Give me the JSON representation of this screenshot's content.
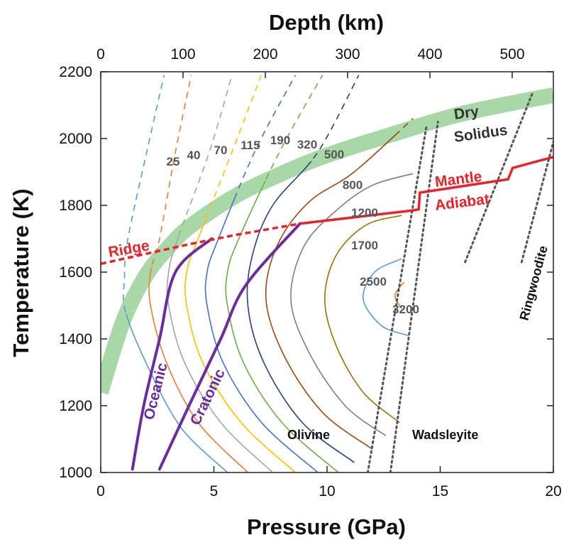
{
  "chart_data": {
    "type": "line",
    "title": "",
    "xlabel": "Pressure (GPa)",
    "ylabel": "Temperature (K)",
    "x2label": "Depth (km)",
    "xlim": [
      0,
      20
    ],
    "ylim": [
      1000,
      2200
    ],
    "x2lim": [
      0,
      550
    ],
    "xticks": [
      0,
      5,
      10,
      15,
      20
    ],
    "yticks": [
      1000,
      1200,
      1400,
      1600,
      1800,
      2000,
      2200
    ],
    "x2ticks": [
      0,
      100,
      200,
      300,
      400,
      500
    ],
    "grid": false,
    "legend": "none",
    "colors": {
      "solidus": "#a8d8a8",
      "adiabat": "#e8232a",
      "geotherm": "#6a2c9e",
      "phase_boundary": "#555555",
      "contour_palette": [
        "#5b9bd5",
        "#ed7d31",
        "#a5a5a5",
        "#ffc000",
        "#4472c4",
        "#70ad47",
        "#264478",
        "#9e480e",
        "#7f7f7f",
        "#997300"
      ]
    },
    "dry_solidus": {
      "label_line1": "Dry",
      "label_line2": "Solidus",
      "points": [
        [
          0,
          1240
        ],
        [
          1,
          1455
        ],
        [
          2,
          1590
        ],
        [
          3,
          1675
        ],
        [
          4,
          1740
        ],
        [
          6,
          1830
        ],
        [
          8,
          1895
        ],
        [
          10,
          1950
        ],
        [
          13,
          2015
        ],
        [
          16,
          2075
        ],
        [
          20,
          2130
        ]
      ]
    },
    "ridge": {
      "label": "Ridge",
      "points": [
        [
          0,
          1625
        ],
        [
          2,
          1655
        ],
        [
          4,
          1685
        ],
        [
          6,
          1712
        ],
        [
          8.8,
          1745
        ]
      ]
    },
    "mantle_adiabat": {
      "label_line1": "Mantle",
      "label_line2": "Adiabat",
      "points": [
        [
          8.8,
          1745
        ],
        [
          13.8,
          1785
        ],
        [
          14.05,
          1788
        ],
        [
          14.1,
          1838
        ],
        [
          18,
          1878
        ],
        [
          18.2,
          1912
        ],
        [
          20,
          1945
        ]
      ]
    },
    "geotherms": [
      {
        "label": "Oceanic",
        "points": [
          [
            1.4,
            1010
          ],
          [
            1.9,
            1200
          ],
          [
            2.6,
            1400
          ],
          [
            3.3,
            1600
          ],
          [
            4.9,
            1700
          ]
        ]
      },
      {
        "label": "Cratonic",
        "points": [
          [
            2.6,
            1010
          ],
          [
            3.9,
            1200
          ],
          [
            5.3,
            1400
          ],
          [
            6.4,
            1560
          ],
          [
            8.8,
            1745
          ]
        ]
      }
    ],
    "contours": [
      {
        "label": "25",
        "points": [
          [
            5.6,
            1000
          ],
          [
            3.6,
            1130
          ],
          [
            2.2,
            1300
          ],
          [
            1.1,
            1480
          ],
          [
            1.05,
            1580
          ],
          [
            1.2,
            1700
          ],
          [
            2.1,
            1980
          ],
          [
            2.8,
            2190
          ]
        ]
      },
      {
        "label": "40",
        "points": [
          [
            6.5,
            1000
          ],
          [
            4.3,
            1150
          ],
          [
            2.9,
            1330
          ],
          [
            2.2,
            1500
          ],
          [
            2.2,
            1600
          ],
          [
            2.6,
            1700
          ],
          [
            3.3,
            1960
          ],
          [
            4.0,
            2190
          ]
        ]
      },
      {
        "label": "70",
        "points": [
          [
            7.6,
            1000
          ],
          [
            5.3,
            1150
          ],
          [
            3.7,
            1330
          ],
          [
            3.0,
            1500
          ],
          [
            3.0,
            1600
          ],
          [
            3.4,
            1700
          ],
          [
            4.8,
            1960
          ],
          [
            5.8,
            2190
          ]
        ]
      },
      {
        "label": "115",
        "points": [
          [
            8.6,
            1000
          ],
          [
            6.2,
            1150
          ],
          [
            4.5,
            1330
          ],
          [
            3.8,
            1500
          ],
          [
            3.8,
            1600
          ],
          [
            4.3,
            1700
          ],
          [
            5.8,
            1960
          ],
          [
            7.1,
            2190
          ]
        ]
      },
      {
        "label": "190",
        "points": [
          [
            9.6,
            1000
          ],
          [
            7.1,
            1150
          ],
          [
            5.4,
            1330
          ],
          [
            4.7,
            1500
          ],
          [
            4.7,
            1600
          ],
          [
            5.2,
            1700
          ],
          [
            6.8,
            1960
          ],
          [
            8.6,
            2190
          ]
        ]
      },
      {
        "label": "320",
        "points": [
          [
            10.5,
            1000
          ],
          [
            8.0,
            1150
          ],
          [
            6.3,
            1330
          ],
          [
            5.6,
            1500
          ],
          [
            5.6,
            1600
          ],
          [
            6.1,
            1700
          ],
          [
            7.9,
            1960
          ],
          [
            9.8,
            2190
          ]
        ]
      },
      {
        "label": "500",
        "points": [
          [
            11.2,
            1030
          ],
          [
            8.9,
            1150
          ],
          [
            7.2,
            1330
          ],
          [
            6.5,
            1500
          ],
          [
            6.7,
            1650
          ],
          [
            7.6,
            1800
          ],
          [
            9.6,
            1960
          ],
          [
            11.4,
            2190
          ]
        ]
      },
      {
        "label": "800",
        "points": [
          [
            12.0,
            1070
          ],
          [
            9.8,
            1180
          ],
          [
            8.1,
            1350
          ],
          [
            7.3,
            1520
          ],
          [
            7.8,
            1680
          ],
          [
            9.2,
            1810
          ],
          [
            11.2,
            1900
          ],
          [
            13.8,
            2060
          ]
        ]
      },
      {
        "label": "1200",
        "points": [
          [
            12.6,
            1110
          ],
          [
            10.8,
            1200
          ],
          [
            9.2,
            1360
          ],
          [
            8.4,
            1520
          ],
          [
            9.0,
            1680
          ],
          [
            10.5,
            1790
          ],
          [
            12.0,
            1860
          ],
          [
            13.8,
            1895
          ]
        ]
      },
      {
        "label": "1700",
        "points": [
          [
            13.2,
            1150
          ],
          [
            11.6,
            1240
          ],
          [
            10.4,
            1380
          ],
          [
            9.9,
            1520
          ],
          [
            10.4,
            1650
          ],
          [
            11.7,
            1740
          ],
          [
            13.3,
            1770
          ]
        ]
      },
      {
        "label": "2500",
        "points": [
          [
            13.6,
            1410
          ],
          [
            12.4,
            1440
          ],
          [
            11.6,
            1520
          ],
          [
            12.1,
            1600
          ],
          [
            13.3,
            1640
          ]
        ]
      },
      {
        "label": "3200",
        "points": [
          [
            13.3,
            1490
          ],
          [
            13.0,
            1530
          ],
          [
            13.4,
            1570
          ]
        ]
      }
    ],
    "phase_boundaries": [
      {
        "label": "Olivine",
        "points": [
          [
            11.8,
            1000
          ],
          [
            14.4,
            2040
          ]
        ]
      },
      {
        "label": "Wadsleyite",
        "points": [
          [
            12.8,
            1000
          ],
          [
            14.9,
            2050
          ]
        ]
      },
      {
        "label": "",
        "points": [
          [
            16.1,
            1630
          ],
          [
            19.1,
            2140
          ]
        ]
      },
      {
        "label": "Ringwoodite",
        "points": [
          [
            18.6,
            1630
          ],
          [
            20.0,
            1990
          ]
        ]
      }
    ]
  }
}
